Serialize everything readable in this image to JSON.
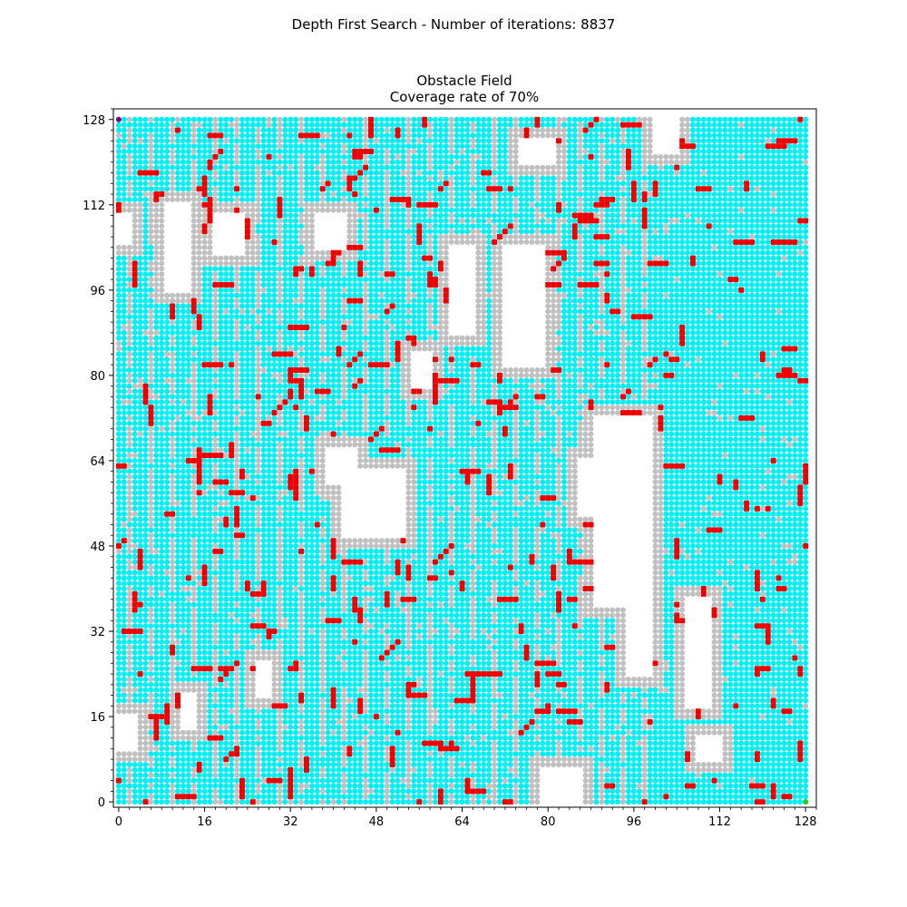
{
  "figure": {
    "suptitle": "Depth First Search - Number of iterations: 8837"
  },
  "chart_data": {
    "type": "scatter",
    "title": "Obstacle Field\nCoverage rate of 70%",
    "title_lines": [
      "Obstacle Field",
      "Coverage rate of 70%"
    ],
    "xlabel": "",
    "ylabel": "",
    "xlim": [
      -1,
      130
    ],
    "ylim": [
      -1,
      130
    ],
    "x_ticks": [
      0,
      16,
      32,
      48,
      64,
      80,
      96,
      112,
      128
    ],
    "y_ticks": [
      0,
      16,
      32,
      48,
      64,
      80,
      96,
      112,
      128
    ],
    "x_tick_labels": [
      "0",
      "16",
      "32",
      "48",
      "64",
      "80",
      "96",
      "112",
      "128"
    ],
    "y_tick_labels": [
      "0",
      "16",
      "32",
      "48",
      "64",
      "80",
      "96",
      "112",
      "128"
    ],
    "minor_tick_step": 2,
    "grid": false,
    "legend": "none",
    "grid_size": 129,
    "coverage_percent": 70,
    "iterations": 8837,
    "colors": {
      "visited": "#00f0f5",
      "explored": "#c0c0c0",
      "obstacle": "#ee0000",
      "free": "#ffffff",
      "start": "#800080",
      "goal": "#22cc22"
    },
    "start": {
      "x": 0,
      "y": 128
    },
    "goal": {
      "x": 128,
      "y": 0
    },
    "free_regions": [
      {
        "x0": 9,
        "x1": 13,
        "y0": 96,
        "y1": 112
      },
      {
        "x0": 18,
        "x1": 23,
        "y0": 103,
        "y1": 110
      },
      {
        "x0": 37,
        "x1": 42,
        "y0": 104,
        "y1": 110
      },
      {
        "x0": 42,
        "x1": 53,
        "y0": 50,
        "y1": 62
      },
      {
        "x0": 39,
        "x1": 44,
        "y0": 60,
        "y1": 66
      },
      {
        "x0": 62,
        "x1": 66,
        "y0": 88,
        "y1": 104
      },
      {
        "x0": 72,
        "x1": 79,
        "y0": 82,
        "y1": 104
      },
      {
        "x0": 75,
        "x1": 81,
        "y0": 120,
        "y1": 124
      },
      {
        "x0": 89,
        "x1": 99,
        "y0": 37,
        "y1": 72
      },
      {
        "x0": 86,
        "x1": 90,
        "y0": 54,
        "y1": 64
      },
      {
        "x0": 95,
        "x1": 99,
        "y0": 24,
        "y1": 37
      },
      {
        "x0": 106,
        "x1": 110,
        "y0": 18,
        "y1": 38
      },
      {
        "x0": 79,
        "x1": 86,
        "y0": 0,
        "y1": 6
      },
      {
        "x0": 0,
        "x1": 3,
        "y0": 10,
        "y1": 16
      },
      {
        "x0": 0,
        "x1": 2,
        "y0": 105,
        "y1": 110
      },
      {
        "x0": 108,
        "x1": 112,
        "y0": 8,
        "y1": 12
      },
      {
        "x0": 26,
        "x1": 28,
        "y0": 20,
        "y1": 26
      },
      {
        "x0": 12,
        "x1": 14,
        "y0": 14,
        "y1": 20
      },
      {
        "x0": 55,
        "x1": 58,
        "y0": 78,
        "y1": 84
      },
      {
        "x0": 100,
        "x1": 104,
        "y0": 122,
        "y1": 128
      }
    ],
    "explored_band_radius": 2,
    "explored_stripe_columns": "alternating vertical columns of explored cells across the left half of the field",
    "obstacle_density_percent": 7,
    "obstacle_seed": 8837
  }
}
